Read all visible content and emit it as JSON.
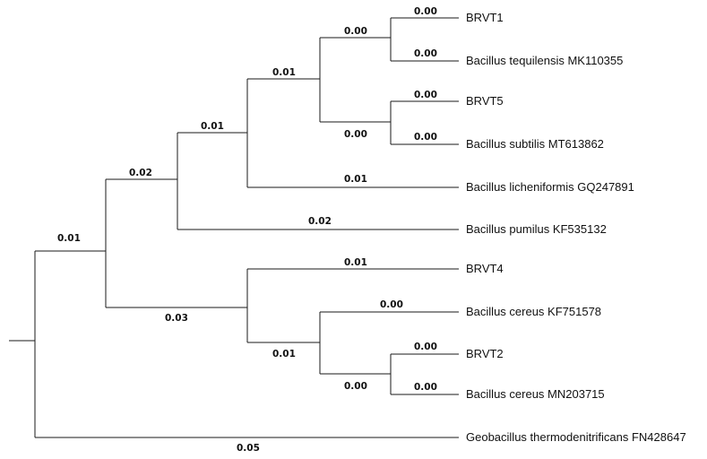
{
  "tree": {
    "taxa": [
      {
        "id": "brvt1",
        "label": "BRVT1"
      },
      {
        "id": "b-tequilensis",
        "label": "Bacillus tequilensis MK110355"
      },
      {
        "id": "brvt5",
        "label": "BRVT5"
      },
      {
        "id": "b-subtilis",
        "label": "Bacillus subtilis MT613862"
      },
      {
        "id": "b-licheniformis",
        "label": "Bacillus licheniformis GQ247891"
      },
      {
        "id": "b-pumilus",
        "label": "Bacillus pumilus KF535132"
      },
      {
        "id": "brvt4",
        "label": "BRVT4"
      },
      {
        "id": "b-cereus-kf",
        "label": "Bacillus cereus KF751578"
      },
      {
        "id": "brvt2",
        "label": "BRVT2"
      },
      {
        "id": "b-cereus-mn",
        "label": "Bacillus cereus MN203715"
      },
      {
        "id": "geobacillus",
        "label": "Geobacillus thermodenitrificans FN428647"
      }
    ],
    "branch_lengths": {
      "brvt1": "0.00",
      "b-tequilensis": "0.00",
      "brvt5": "0.00",
      "b-subtilis": "0.00",
      "clade-t1-teq": "0.00",
      "clade-t5-sub": "0.00",
      "clade-subtilis-group": "0.01",
      "b-licheniformis": "0.01",
      "clade-subtilis-lich": "0.01",
      "b-pumilus": "0.02",
      "clade-pumilus-group": "0.02",
      "brvt4": "0.01",
      "b-cereus-kf": "0.00",
      "brvt2": "0.00",
      "b-cereus-mn": "0.00",
      "clade-t2-mn": "0.00",
      "clade-cereus-inner": "0.01",
      "clade-cereus-group": "0.03",
      "clade-bacillus": "0.01",
      "geobacillus": "0.05"
    }
  }
}
